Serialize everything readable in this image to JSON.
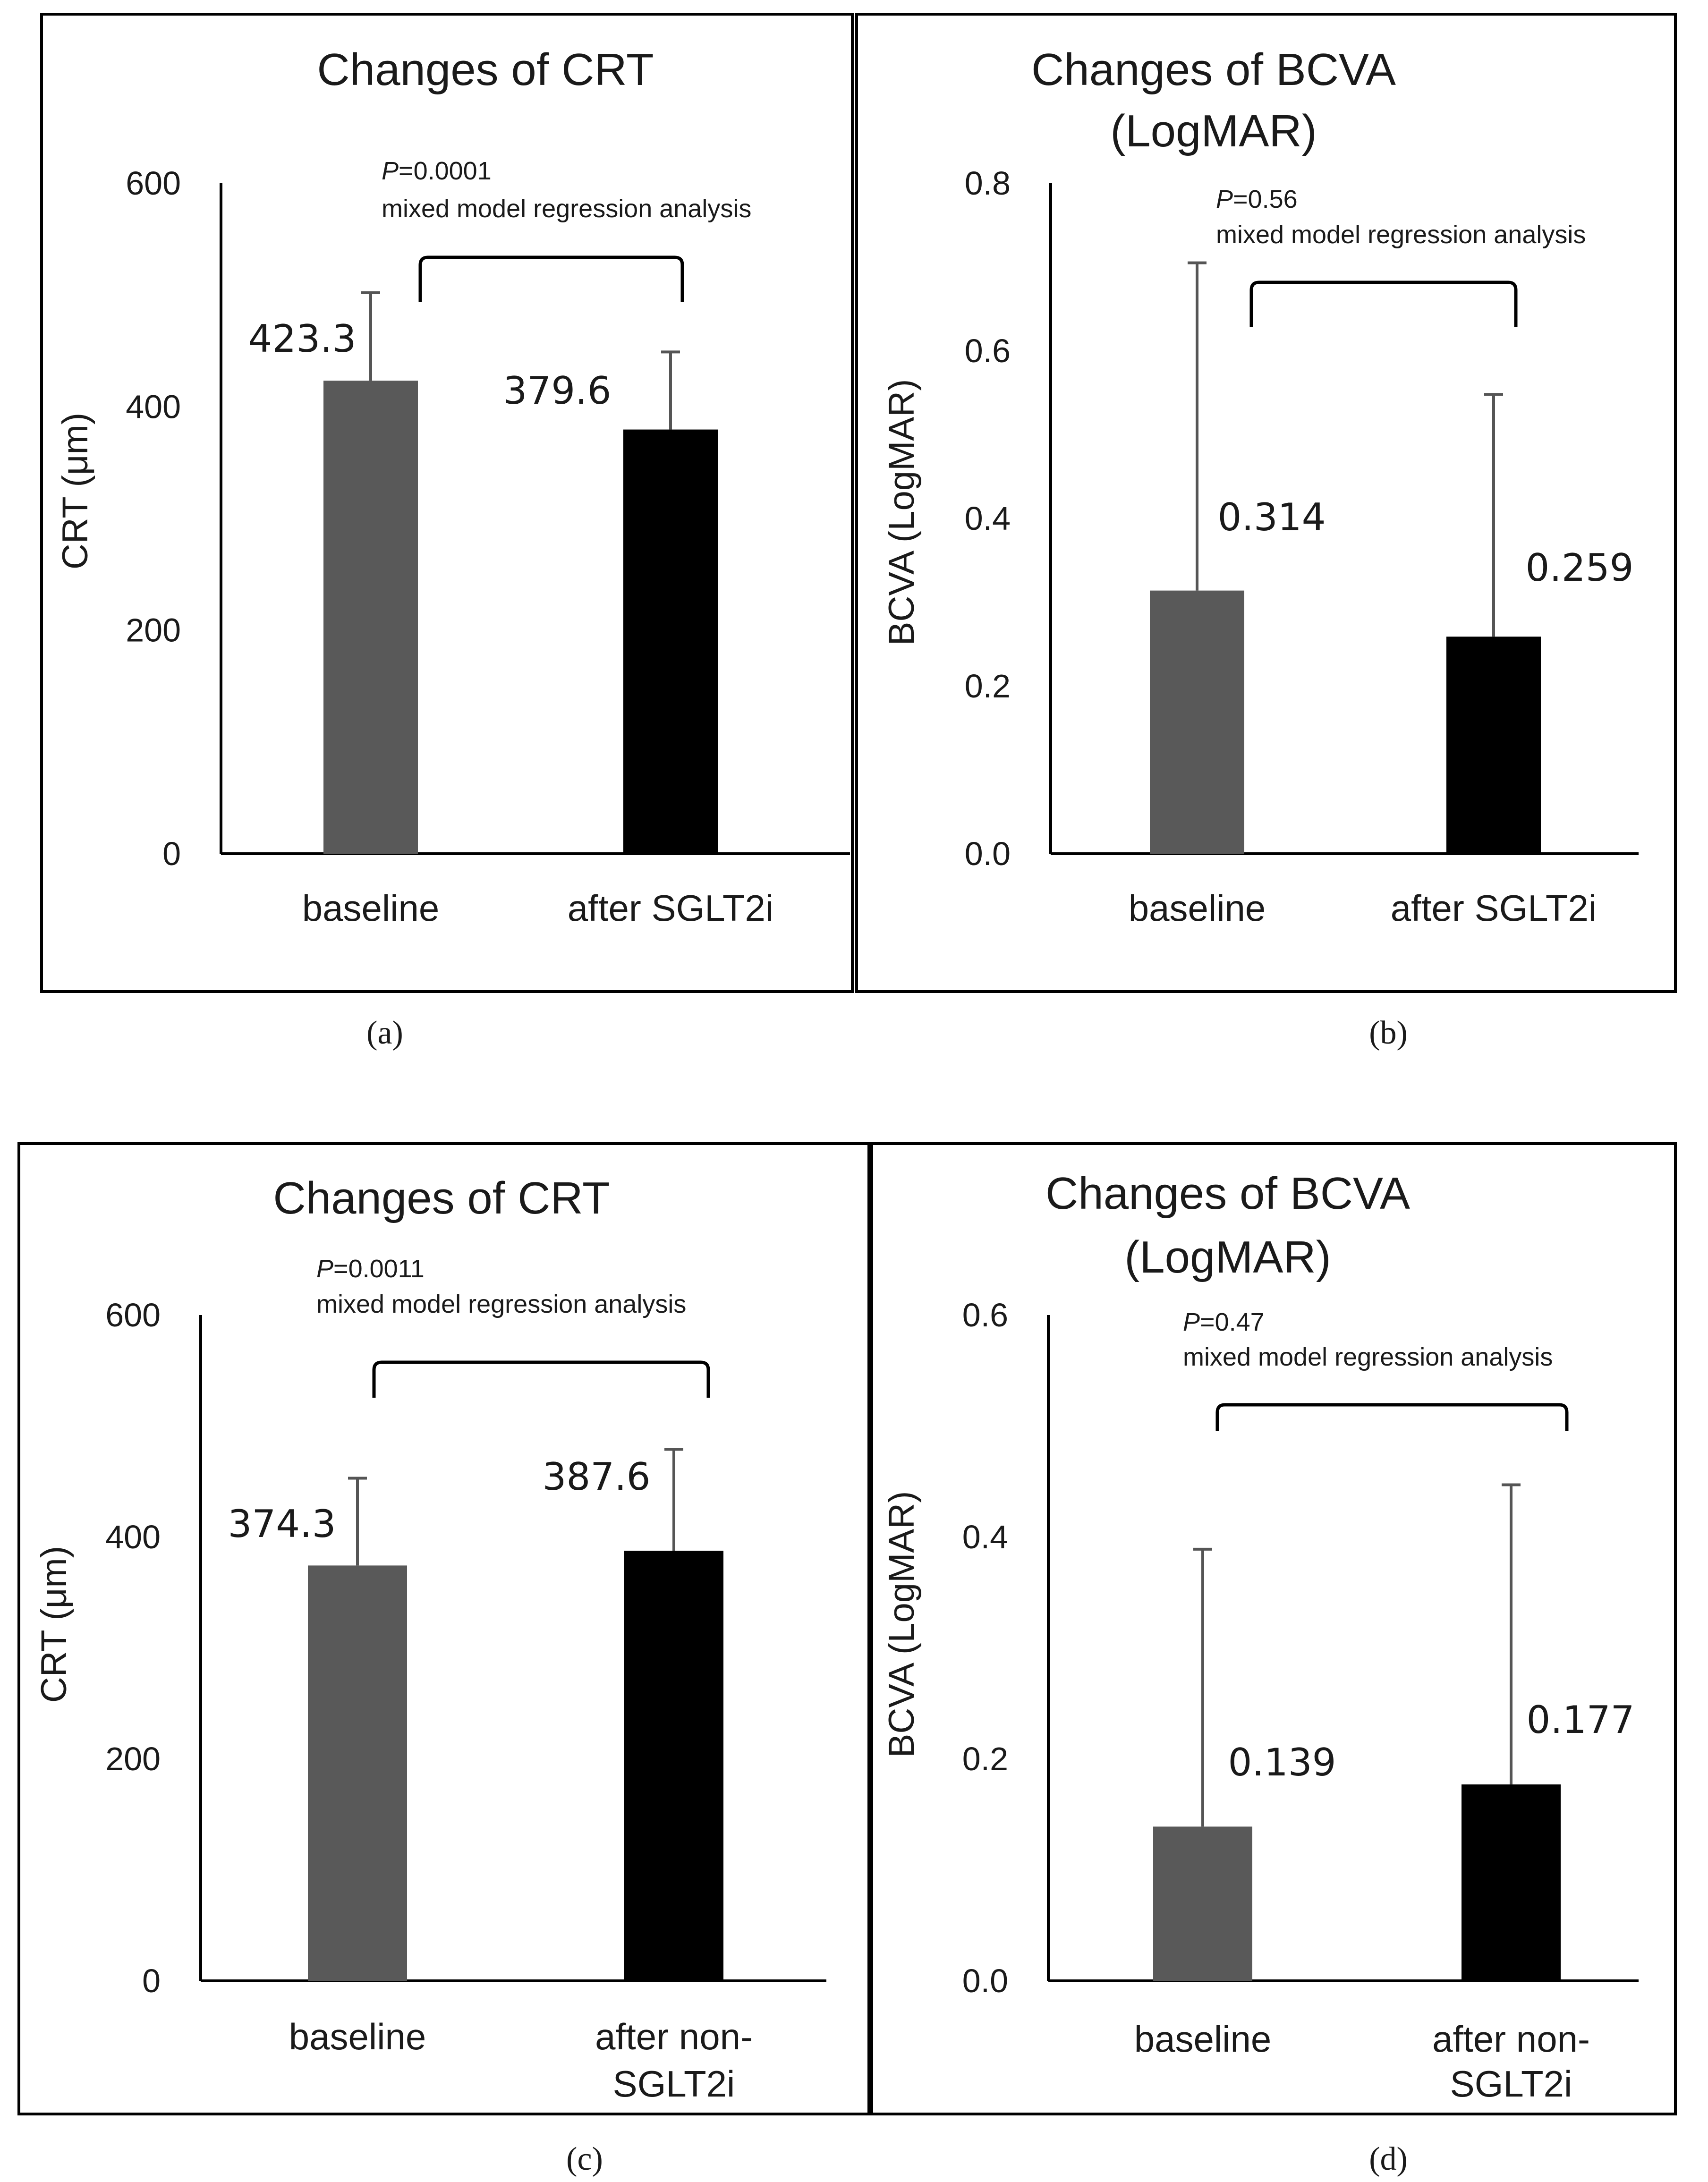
{
  "figure": {
    "captions": [
      "(a)",
      "(b)",
      "(c)",
      "(d)"
    ]
  },
  "chart_data": [
    {
      "type": "bar",
      "title": "Changes of CRT",
      "ylabel": "CRT (μm)",
      "xlabel": "",
      "categories": [
        "baseline",
        "after SGLT2i"
      ],
      "values": [
        423.3,
        379.6
      ],
      "value_labels": [
        "423.3",
        "379.6"
      ],
      "error_upper": [
        502,
        449
      ],
      "ylim": [
        0,
        600
      ],
      "yticks": [
        "0",
        "200",
        "400",
        "600"
      ],
      "bar_colors": [
        "#595959",
        "#000000"
      ],
      "annotation": {
        "p_label": "P",
        "p_value": "=0.0001",
        "method": "mixed model regression analysis"
      },
      "caption": "(a)"
    },
    {
      "type": "bar",
      "title": "Changes of BCVA (LogMAR)",
      "ylabel": "BCVA (LogMAR)",
      "xlabel": "",
      "categories": [
        "baseline",
        "after SGLT2i"
      ],
      "values": [
        0.314,
        0.259
      ],
      "value_labels": [
        "0.314",
        "0.259"
      ],
      "error_upper": [
        0.705,
        0.548
      ],
      "ylim": [
        0,
        0.8
      ],
      "yticks": [
        "0.0",
        "0.2",
        "0.4",
        "0.6",
        "0.8"
      ],
      "bar_colors": [
        "#595959",
        "#000000"
      ],
      "annotation": {
        "p_label": "P",
        "p_value": "=0.56",
        "method": "mixed model regression analysis"
      },
      "caption": "(b)"
    },
    {
      "type": "bar",
      "title": "Changes of CRT",
      "ylabel": "CRT (μm)",
      "xlabel": "",
      "categories": [
        "baseline",
        "after non-SGLT2i"
      ],
      "values": [
        374.3,
        387.6
      ],
      "value_labels": [
        "374.3",
        "387.6"
      ],
      "error_upper": [
        453,
        479
      ],
      "ylim": [
        0,
        600
      ],
      "yticks": [
        "0",
        "200",
        "400",
        "600"
      ],
      "bar_colors": [
        "#595959",
        "#000000"
      ],
      "annotation": {
        "p_label": "P",
        "p_value": "=0.0011",
        "method": "mixed model regression analysis"
      },
      "caption": "(c)"
    },
    {
      "type": "bar",
      "title": "Changes of BCVA (LogMAR)",
      "ylabel": "BCVA (LogMAR)",
      "xlabel": "",
      "categories": [
        "baseline",
        "after non-SGLT2i"
      ],
      "values": [
        0.139,
        0.177
      ],
      "value_labels": [
        "0.139",
        "0.177"
      ],
      "error_upper": [
        0.389,
        0.447
      ],
      "ylim": [
        0,
        0.6
      ],
      "yticks": [
        "0.0",
        "0.2",
        "0.4",
        "0.6"
      ],
      "bar_colors": [
        "#595959",
        "#000000"
      ],
      "annotation": {
        "p_label": "P",
        "p_value": "=0.47",
        "method": "mixed model regression analysis"
      },
      "caption": "(d)"
    }
  ]
}
